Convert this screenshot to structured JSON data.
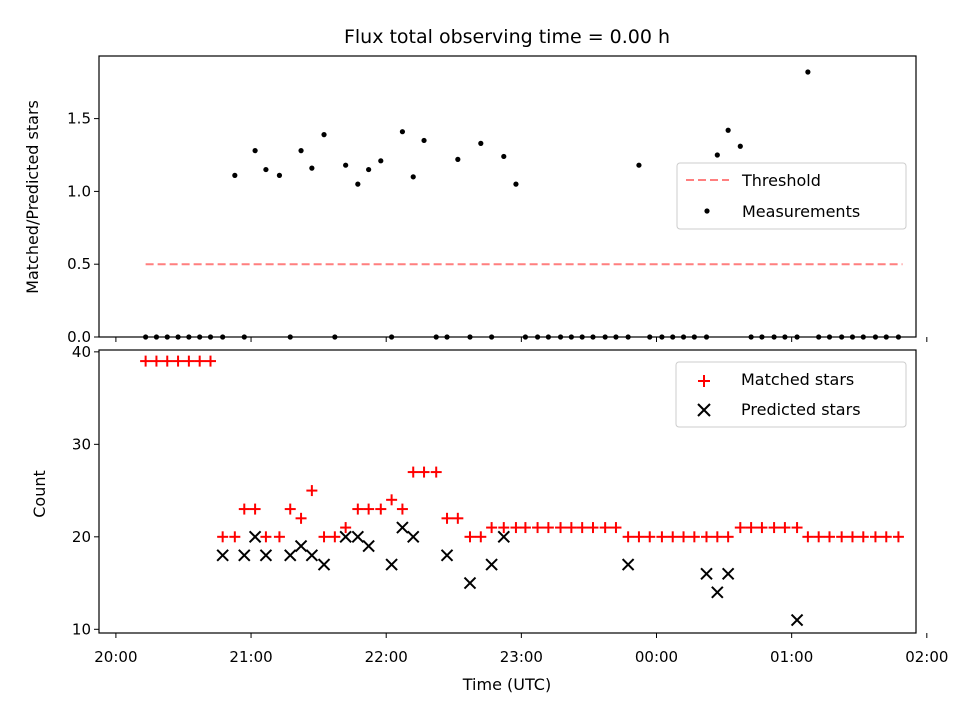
{
  "chart_data": [
    {
      "type": "scatter",
      "title": "Flux total observing time = 0.00 h",
      "xlabel": "",
      "ylabel": "Matched/Predicted stars",
      "ylim": [
        0,
        1.93
      ],
      "yticks": [
        0.0,
        0.5,
        1.0,
        1.5
      ],
      "ytick_labels": [
        "0.0",
        "0.5",
        "1.0",
        "1.5"
      ],
      "xlim": [
        -0.125,
        5.92
      ],
      "grid": false,
      "legend_position": "right",
      "series": [
        {
          "name": "Threshold",
          "kind": "line",
          "color": "#ff7f7f",
          "dash": true,
          "x": [
            0.22,
            5.82
          ],
          "y": [
            0.5,
            0.5
          ]
        },
        {
          "name": "Measurements",
          "kind": "points",
          "color": "#000000",
          "x": [
            0.22,
            0.3,
            0.38,
            0.46,
            0.54,
            0.62,
            0.7,
            0.79,
            0.88,
            0.95,
            1.03,
            1.11,
            1.21,
            1.29,
            1.37,
            1.45,
            1.54,
            1.62,
            1.7,
            1.79,
            1.87,
            1.96,
            2.04,
            2.12,
            2.2,
            2.28,
            2.37,
            2.45,
            2.53,
            2.62,
            2.7,
            2.78,
            2.87,
            2.96,
            3.03,
            3.12,
            3.2,
            3.29,
            3.37,
            3.45,
            3.53,
            3.62,
            3.7,
            3.79,
            3.87,
            3.95,
            4.04,
            4.12,
            4.2,
            4.28,
            4.37,
            4.45,
            4.53,
            4.62,
            4.7,
            4.78,
            4.87,
            4.95,
            5.04,
            5.12,
            5.2,
            5.28,
            5.37,
            5.45,
            5.53,
            5.62,
            5.7,
            5.79
          ],
          "y": [
            0,
            0,
            0,
            0,
            0,
            0,
            0,
            0,
            1.11,
            0,
            1.28,
            1.15,
            1.11,
            0,
            1.28,
            1.16,
            1.39,
            0,
            1.18,
            1.05,
            1.15,
            1.21,
            0,
            1.41,
            1.1,
            1.35,
            0,
            0,
            1.22,
            0,
            1.33,
            0,
            1.24,
            1.05,
            0,
            0,
            0,
            0,
            0,
            0,
            0,
            0,
            0,
            0,
            1.18,
            0,
            0,
            0,
            0,
            0,
            0,
            1.25,
            1.42,
            1.31,
            0,
            0,
            0,
            0,
            0,
            1.82,
            0,
            0,
            0,
            0,
            0,
            0,
            0,
            0
          ]
        }
      ]
    },
    {
      "type": "scatter",
      "title": "",
      "xlabel": "Time (UTC)",
      "ylabel": "Count",
      "ylim": [
        9.6,
        40.2
      ],
      "yticks": [
        10,
        20,
        30,
        40
      ],
      "ytick_labels": [
        "10",
        "20",
        "30",
        "40"
      ],
      "xlim": [
        -0.125,
        5.92
      ],
      "xticks": [
        0,
        1,
        2,
        3,
        4,
        5,
        6
      ],
      "xtick_labels": [
        "20:00",
        "21:00",
        "22:00",
        "23:00",
        "00:00",
        "01:00",
        "02:00"
      ],
      "grid": false,
      "legend_position": "upper right",
      "series": [
        {
          "name": "Matched stars",
          "marker": "+",
          "color": "#ff0000",
          "x": [
            0.22,
            0.3,
            0.38,
            0.46,
            0.54,
            0.62,
            0.7,
            0.79,
            0.88,
            0.95,
            1.03,
            1.11,
            1.21,
            1.29,
            1.37,
            1.45,
            1.54,
            1.62,
            1.7,
            1.79,
            1.87,
            1.96,
            2.04,
            2.12,
            2.2,
            2.28,
            2.37,
            2.45,
            2.53,
            2.62,
            2.7,
            2.78,
            2.87,
            2.96,
            3.03,
            3.12,
            3.2,
            3.29,
            3.37,
            3.45,
            3.53,
            3.62,
            3.7,
            3.79,
            3.87,
            3.95,
            4.04,
            4.12,
            4.2,
            4.28,
            4.37,
            4.45,
            4.53,
            4.62,
            4.7,
            4.78,
            4.87,
            4.95,
            5.04,
            5.12,
            5.2,
            5.28,
            5.37,
            5.45,
            5.53,
            5.62,
            5.7,
            5.79
          ],
          "y": [
            39,
            39,
            39,
            39,
            39,
            39,
            39,
            20,
            20,
            23,
            23,
            20,
            20,
            23,
            22,
            25,
            20,
            20,
            21,
            23,
            23,
            23,
            24,
            23,
            27,
            27,
            27,
            22,
            22,
            20,
            20,
            21,
            21,
            21,
            21,
            21,
            21,
            21,
            21,
            21,
            21,
            21,
            21,
            20,
            20,
            20,
            20,
            20,
            20,
            20,
            20,
            20,
            20,
            21,
            21,
            21,
            21,
            21,
            21,
            20,
            20,
            20,
            20,
            20,
            20,
            20,
            20,
            20
          ]
        },
        {
          "name": "Predicted stars",
          "marker": "x",
          "color": "#000000",
          "x": [
            0.79,
            0.95,
            1.03,
            1.11,
            1.29,
            1.37,
            1.45,
            1.54,
            1.7,
            1.79,
            1.87,
            2.04,
            2.12,
            2.2,
            2.45,
            2.62,
            2.78,
            2.87,
            3.79,
            4.37,
            4.45,
            4.53,
            5.04
          ],
          "y": [
            18,
            18,
            20,
            18,
            18,
            19,
            18,
            17,
            20,
            20,
            19,
            17,
            21,
            20,
            18,
            15,
            17,
            20,
            17,
            16,
            14,
            16,
            11
          ]
        }
      ]
    }
  ]
}
